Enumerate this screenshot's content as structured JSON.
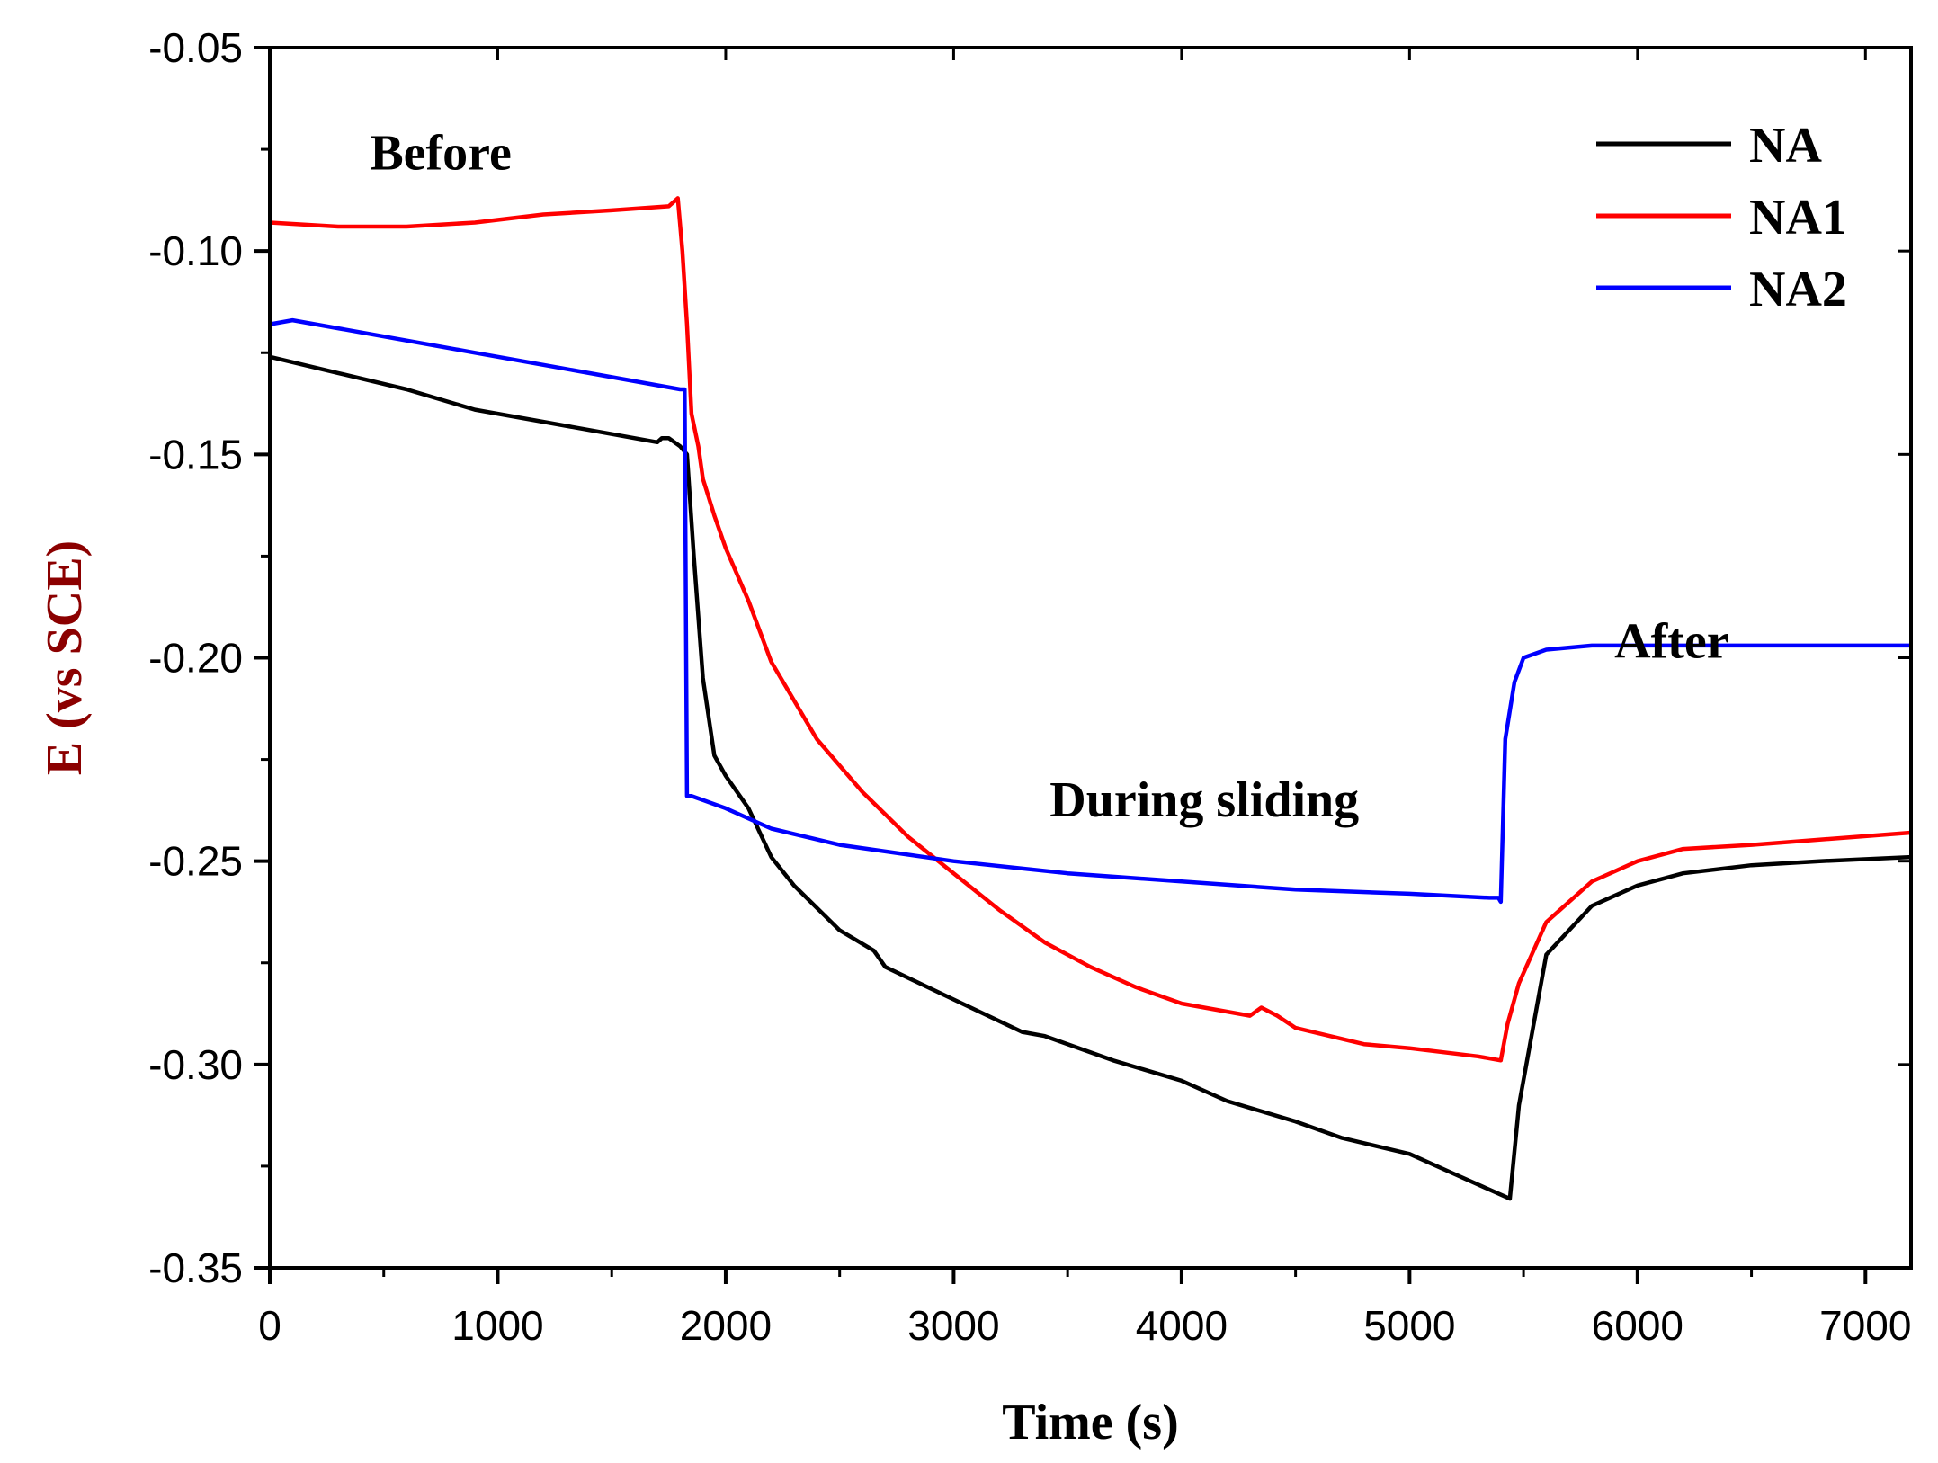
{
  "chart_data": {
    "type": "line",
    "xlabel": "Time (s)",
    "ylabel": "E (vs SCE)",
    "xlim": [
      0,
      7200
    ],
    "ylim": [
      -0.35,
      -0.05
    ],
    "x_ticks": [
      "0",
      "1000",
      "2000",
      "3000",
      "4000",
      "5000",
      "6000",
      "7000"
    ],
    "y_ticks": [
      "-0.05",
      "-0.10",
      "-0.15",
      "-0.20",
      "-0.25",
      "-0.30",
      "-0.35"
    ],
    "grid": false,
    "legend_position": "top-right",
    "annotations": [
      {
        "text": "Before",
        "x": 750,
        "y": -0.08
      },
      {
        "text": "During sliding",
        "x": 4100,
        "y": -0.239
      },
      {
        "text": "After",
        "x": 6150,
        "y": -0.2
      },
      {
        "text": "",
        "x": 0,
        "y": 0
      }
    ],
    "series": [
      {
        "name": "NA",
        "color": "#000000",
        "x": [
          0,
          300,
          600,
          900,
          1200,
          1500,
          1700,
          1720,
          1750,
          1800,
          1830,
          1860,
          1900,
          1950,
          2000,
          2100,
          2200,
          2300,
          2500,
          2650,
          2700,
          3000,
          3300,
          3400,
          3700,
          4000,
          4200,
          4500,
          4700,
          5000,
          5200,
          5400,
          5440,
          5480,
          5600,
          5800,
          6000,
          6200,
          6500,
          6800,
          7200
        ],
        "y": [
          -0.126,
          -0.13,
          -0.134,
          -0.139,
          -0.142,
          -0.145,
          -0.147,
          -0.146,
          -0.146,
          -0.148,
          -0.15,
          -0.175,
          -0.205,
          -0.224,
          -0.229,
          -0.237,
          -0.249,
          -0.256,
          -0.267,
          -0.272,
          -0.276,
          -0.284,
          -0.292,
          -0.293,
          -0.299,
          -0.304,
          -0.309,
          -0.314,
          -0.318,
          -0.322,
          -0.327,
          -0.332,
          -0.333,
          -0.31,
          -0.273,
          -0.261,
          -0.256,
          -0.253,
          -0.251,
          -0.25,
          -0.249
        ]
      },
      {
        "name": "NA1",
        "color": "#ff0000",
        "x": [
          0,
          300,
          600,
          900,
          1200,
          1500,
          1750,
          1790,
          1810,
          1830,
          1850,
          1880,
          1900,
          1950,
          2000,
          2100,
          2200,
          2400,
          2600,
          2800,
          3000,
          3200,
          3400,
          3600,
          3800,
          4000,
          4300,
          4350,
          4420,
          4500,
          4800,
          5000,
          5300,
          5400,
          5430,
          5480,
          5600,
          5800,
          6000,
          6200,
          6500,
          7200
        ],
        "y": [
          -0.093,
          -0.094,
          -0.094,
          -0.093,
          -0.091,
          -0.09,
          -0.089,
          -0.087,
          -0.1,
          -0.118,
          -0.14,
          -0.148,
          -0.156,
          -0.165,
          -0.173,
          -0.186,
          -0.201,
          -0.22,
          -0.233,
          -0.244,
          -0.253,
          -0.262,
          -0.27,
          -0.276,
          -0.281,
          -0.285,
          -0.288,
          -0.286,
          -0.288,
          -0.291,
          -0.295,
          -0.296,
          -0.298,
          -0.299,
          -0.29,
          -0.28,
          -0.265,
          -0.255,
          -0.25,
          -0.247,
          -0.246,
          -0.243
        ]
      },
      {
        "name": "NA2",
        "color": "#0000ff",
        "x": [
          0,
          100,
          300,
          600,
          900,
          1200,
          1500,
          1800,
          1820,
          1830,
          1850,
          1900,
          2000,
          2200,
          2500,
          3000,
          3500,
          4000,
          4500,
          5000,
          5350,
          5390,
          5400,
          5420,
          5460,
          5500,
          5600,
          5800,
          6000,
          6200,
          6500,
          7200
        ],
        "y": [
          -0.118,
          -0.117,
          -0.119,
          -0.122,
          -0.125,
          -0.128,
          -0.131,
          -0.134,
          -0.134,
          -0.234,
          -0.234,
          -0.235,
          -0.237,
          -0.242,
          -0.246,
          -0.25,
          -0.253,
          -0.255,
          -0.257,
          -0.258,
          -0.259,
          -0.259,
          -0.26,
          -0.22,
          -0.206,
          -0.2,
          -0.198,
          -0.197,
          -0.197,
          -0.197,
          -0.197,
          -0.197
        ]
      }
    ]
  },
  "colors": {
    "ylabel": "#8b0000",
    "xlabel": "#000000",
    "axes": "#000000"
  }
}
